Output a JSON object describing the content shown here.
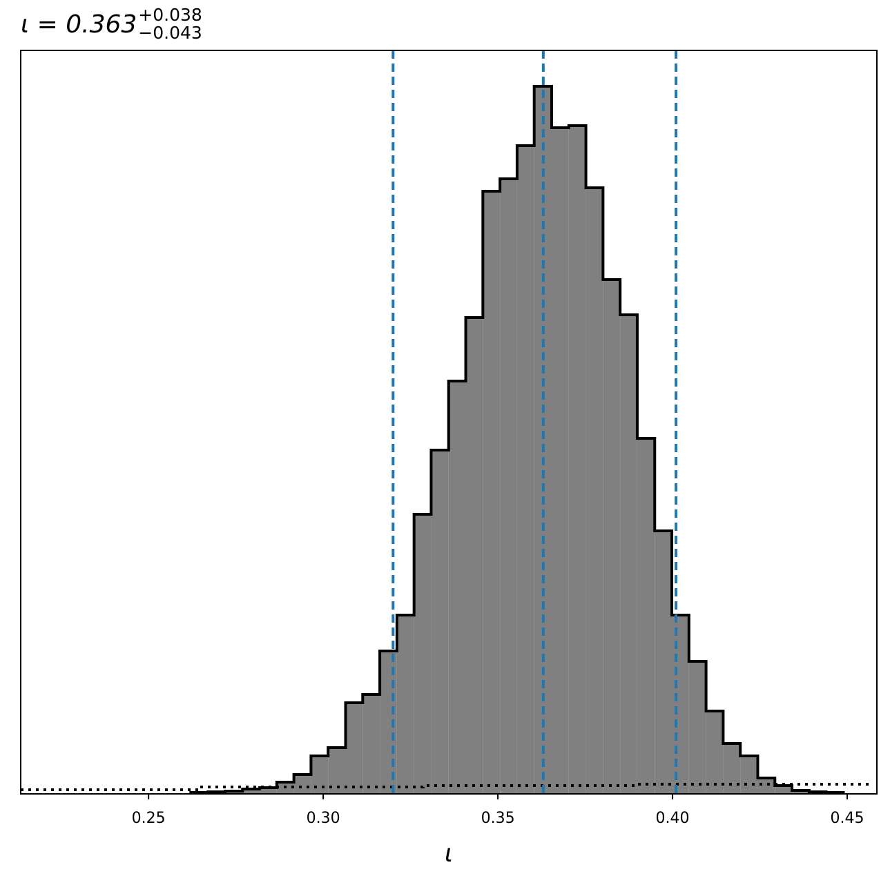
{
  "chart_data": {
    "type": "histogram",
    "title": {
      "main": "ι = 0.363",
      "sup": "+0.038",
      "sub": "−0.043"
    },
    "xlabel": "ι",
    "bins": [
      0.2621,
      0.267,
      0.2719,
      0.2769,
      0.2818,
      0.2867,
      0.2916,
      0.2965,
      0.3014,
      0.3064,
      0.3113,
      0.3162,
      0.3211,
      0.326,
      0.3309,
      0.3359,
      0.3408,
      0.3457,
      0.3506,
      0.3555,
      0.3604,
      0.3654,
      0.3703,
      0.3752,
      0.3801,
      0.385,
      0.3899,
      0.3949,
      0.3998,
      0.4047,
      0.4096,
      0.4145,
      0.4194,
      0.4244,
      0.4293,
      0.4342,
      0.4391,
      0.444,
      0.4489
    ],
    "values": [
      2,
      3,
      4,
      7,
      9,
      17,
      28,
      55,
      67,
      132,
      144,
      207,
      259,
      405,
      498,
      598,
      690,
      873,
      891,
      939,
      1025,
      965,
      968,
      878,
      745,
      694,
      515,
      381,
      259,
      192,
      120,
      73,
      55,
      23,
      12,
      5,
      3,
      2
    ],
    "color": "#808080",
    "edge_color": "#000000",
    "prior": {
      "bins": [
        0.2134,
        0.2647,
        0.3286,
        0.3898,
        0.4574
      ],
      "values": [
        6,
        10,
        12,
        14
      ]
    },
    "vlines": [
      0.32,
      0.363,
      0.401
    ],
    "vline_color": "#1f77b4",
    "xlim": [
      0.2134,
      0.4585
    ],
    "ylim": [
      0,
      1077
    ],
    "xticks": [
      0.25,
      {
        "value": 0.3,
        "label": "0.30"
      },
      0.35,
      {
        "value": 0.4,
        "label": "0.40"
      },
      0.45
    ]
  }
}
